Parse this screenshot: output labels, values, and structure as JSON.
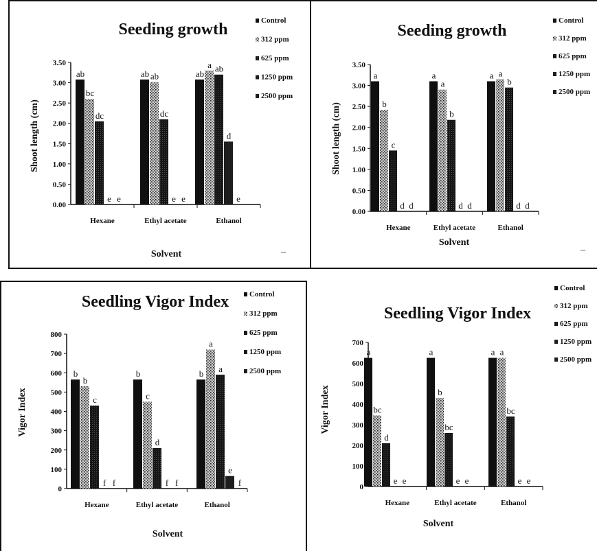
{
  "page": {
    "corner_marks": [
      "–",
      "–"
    ]
  },
  "legend_labels_a": [
    "Control",
    "312 ppm",
    "625 ppm",
    "1250 ppm",
    "2500 ppm"
  ],
  "chart_data": [
    {
      "type": "bar",
      "title": "Seeding growth",
      "xlabel": "Solvent",
      "ylabel": "Shoot length (cm)",
      "ylim": [
        0,
        3.5
      ],
      "yticks": [
        "0.00",
        "0.50",
        "1.00",
        "1.50",
        "2.00",
        "2.50",
        "3.00",
        "3.50"
      ],
      "categories": [
        "Hexane",
        "Ethyl acetate",
        "Ethanol"
      ],
      "legend": [
        "Control",
        "312 ppm",
        "625 ppm",
        "1250 ppm",
        "2500 ppm"
      ],
      "legend_position": "right",
      "series": [
        {
          "name": "Control",
          "values": [
            3.08,
            3.08,
            3.08
          ],
          "labels": [
            "ab",
            "ab",
            "ab"
          ]
        },
        {
          "name": "312 ppm",
          "values": [
            2.6,
            3.02,
            3.3
          ],
          "labels": [
            "bc",
            "ab",
            "a"
          ]
        },
        {
          "name": "625 ppm",
          "values": [
            2.05,
            2.1,
            3.2
          ],
          "labels": [
            "dc",
            "dc",
            "ab"
          ]
        },
        {
          "name": "1250 ppm",
          "values": [
            0,
            0,
            1.55
          ],
          "labels": [
            "e",
            "e",
            "d"
          ]
        },
        {
          "name": "2500 ppm",
          "values": [
            0,
            0,
            0
          ],
          "labels": [
            "e",
            "e",
            "e"
          ]
        }
      ]
    },
    {
      "type": "bar",
      "title": "Seeding growth",
      "xlabel": "Solvent",
      "ylabel": "Shoot length (cm)",
      "ylim": [
        0,
        3.5
      ],
      "yticks": [
        "0.00",
        "0.50",
        "1.00",
        "1.50",
        "2.00",
        "2.50",
        "3.00",
        "3.50"
      ],
      "categories": [
        "Hexane",
        "Ethyl acetate",
        "Ethanol"
      ],
      "legend": [
        "Control",
        "312 ppm",
        "625 ppm",
        "1250 ppm",
        "2500 ppm"
      ],
      "legend_position": "right",
      "series": [
        {
          "name": "Control",
          "values": [
            3.1,
            3.1,
            3.1
          ],
          "labels": [
            "a",
            "a",
            "a"
          ]
        },
        {
          "name": "312 ppm",
          "values": [
            2.42,
            2.9,
            3.15
          ],
          "labels": [
            "b",
            "a",
            "a"
          ]
        },
        {
          "name": "625 ppm",
          "values": [
            1.45,
            2.18,
            2.95
          ],
          "labels": [
            "c",
            "b",
            "b"
          ]
        },
        {
          "name": "1250 ppm",
          "values": [
            0,
            0,
            0
          ],
          "labels": [
            "d",
            "d",
            "d"
          ]
        },
        {
          "name": "2500 ppm",
          "values": [
            0,
            0,
            0
          ],
          "labels": [
            "d",
            "d",
            "d"
          ]
        }
      ]
    },
    {
      "type": "bar",
      "title": "Seedling Vigor Index",
      "xlabel": "Solvent",
      "ylabel": "Vigor Index",
      "ylim": [
        0,
        800
      ],
      "yticks": [
        "0",
        "100",
        "200",
        "300",
        "400",
        "500",
        "600",
        "700",
        "800"
      ],
      "categories": [
        "Hexane",
        "Ethyl acetate",
        "Ethanol"
      ],
      "legend": [
        "Control",
        "312 ppm",
        "625 ppm",
        "1250 ppm",
        "2500 ppm"
      ],
      "legend_position": "right",
      "series": [
        {
          "name": "Control",
          "values": [
            565,
            565,
            565
          ],
          "labels": [
            "b",
            "b",
            "b"
          ]
        },
        {
          "name": "312 ppm",
          "values": [
            530,
            450,
            720
          ],
          "labels": [
            "b",
            "c",
            "a"
          ]
        },
        {
          "name": "625 ppm",
          "values": [
            430,
            210,
            590
          ],
          "labels": [
            "c",
            "d",
            "a"
          ]
        },
        {
          "name": "1250 ppm",
          "values": [
            0,
            0,
            65
          ],
          "labels": [
            "f",
            "f",
            "e"
          ]
        },
        {
          "name": "2500 ppm",
          "values": [
            0,
            0,
            0
          ],
          "labels": [
            "f",
            "f",
            "f"
          ]
        }
      ]
    },
    {
      "type": "bar",
      "title": "Seedling Vigor Index",
      "xlabel": "Solvent",
      "ylabel": "Vigor Index",
      "ylim": [
        0,
        700
      ],
      "yticks": [
        "0",
        "100",
        "200",
        "300",
        "400",
        "500",
        "600",
        "700"
      ],
      "categories": [
        "Hexane",
        "Ethyl acetate",
        "Ethanol"
      ],
      "legend": [
        "Control",
        "312 ppm",
        "625 ppm",
        "1250 ppm",
        "2500 ppm"
      ],
      "legend_position": "right",
      "series": [
        {
          "name": "Control",
          "values": [
            625,
            625,
            625
          ],
          "labels": [
            "a",
            "a",
            "a"
          ]
        },
        {
          "name": "312 ppm",
          "values": [
            345,
            430,
            625
          ],
          "labels": [
            "bc",
            "b",
            "a"
          ]
        },
        {
          "name": "625 ppm",
          "values": [
            210,
            260,
            340
          ],
          "labels": [
            "d",
            "bc",
            "bc"
          ]
        },
        {
          "name": "1250 ppm",
          "values": [
            0,
            0,
            0
          ],
          "labels": [
            "e",
            "e",
            "e"
          ]
        },
        {
          "name": "2500 ppm",
          "values": [
            0,
            0,
            0
          ],
          "labels": [
            "e",
            "e",
            "e"
          ]
        }
      ]
    }
  ]
}
